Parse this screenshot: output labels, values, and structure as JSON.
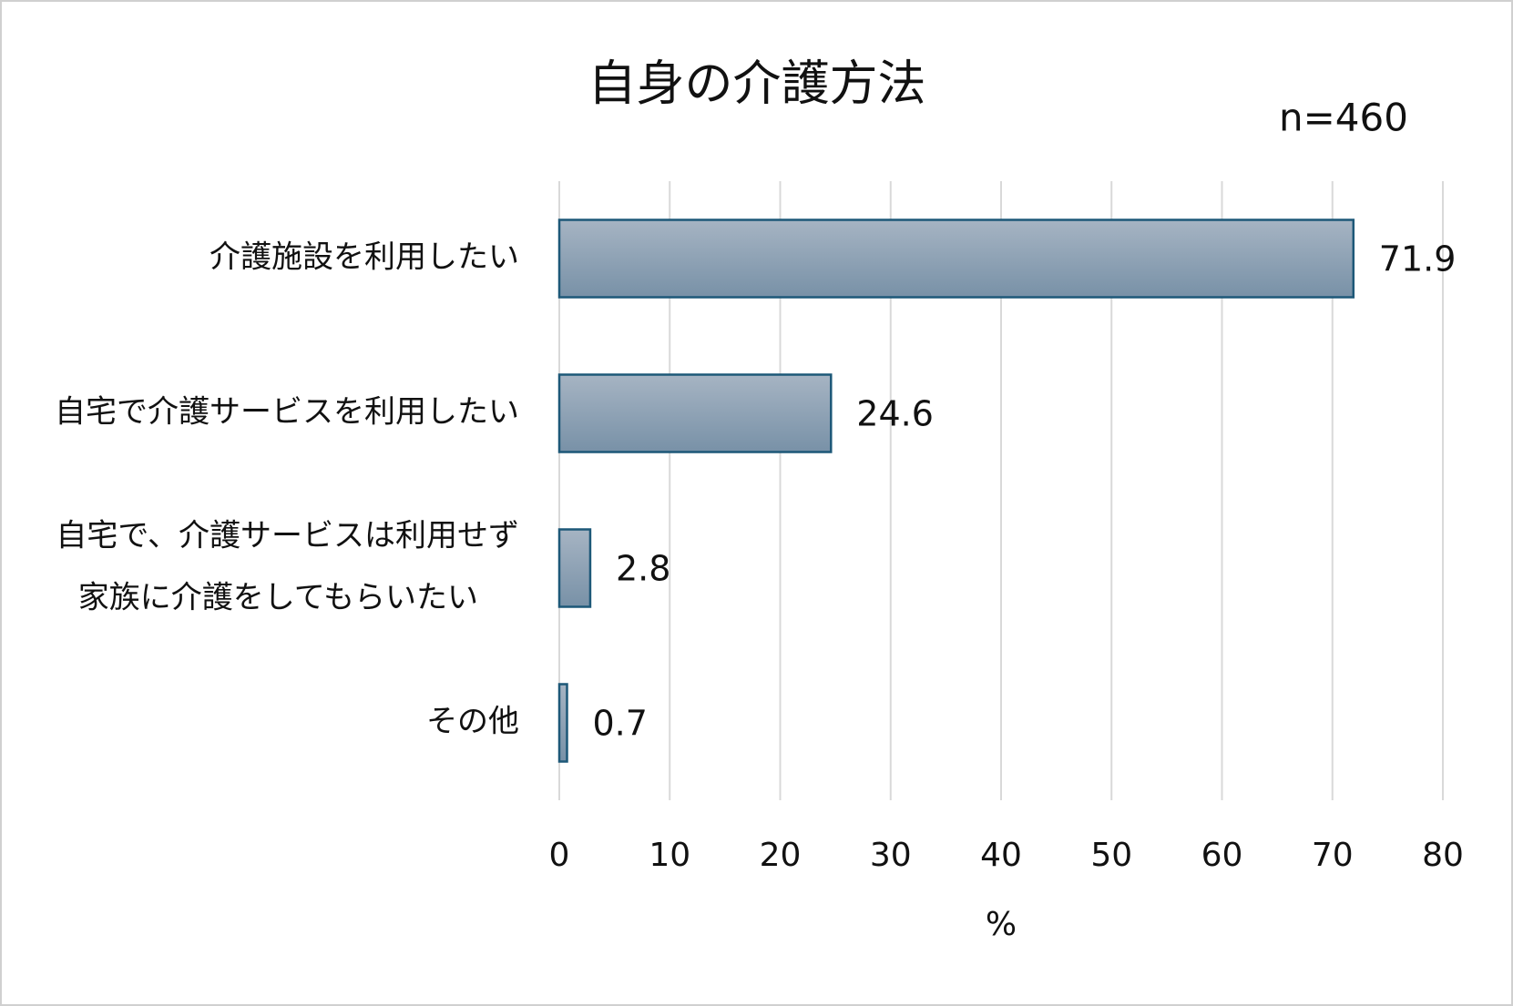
{
  "chart_data": {
    "type": "bar",
    "orientation": "horizontal",
    "title": "自身の介護方法",
    "annotation": "n=460",
    "categories": [
      "介護施設を利用したい",
      "自宅で介護サービスを利用したい",
      [
        "自宅で、介護サービスは利用せず",
        "家族に介護をしてもらいたい"
      ],
      "その他"
    ],
    "values": [
      71.9,
      24.6,
      2.8,
      0.7
    ],
    "xlabel": "%",
    "xlim": [
      0,
      80
    ],
    "xticks": [
      0,
      10,
      20,
      30,
      40,
      50,
      60,
      70,
      80
    ],
    "grid": true
  }
}
